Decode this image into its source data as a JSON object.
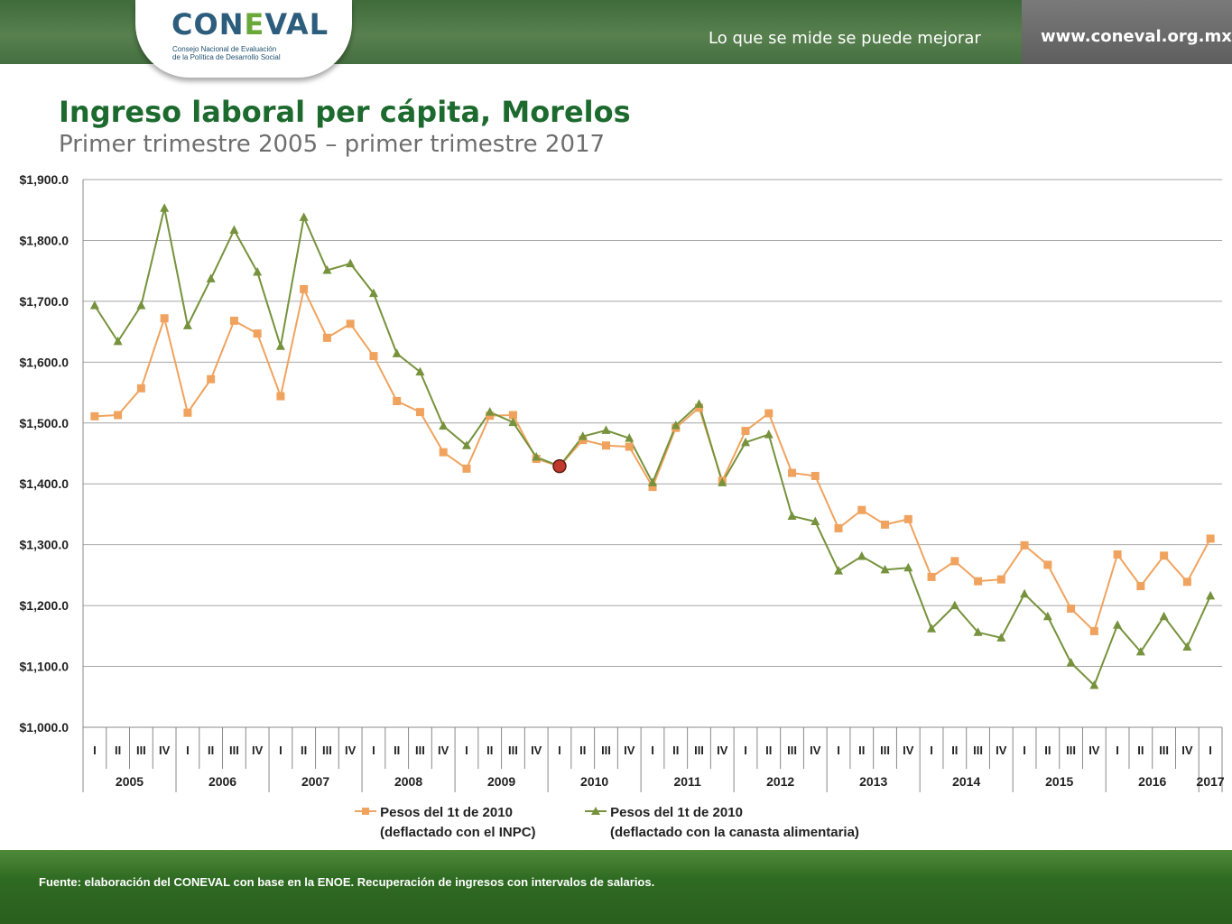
{
  "header": {
    "logo_text": "CONEVAL",
    "logo_subtitle_line1": "Consejo Nacional de Evaluación",
    "logo_subtitle_line2": "de la Política de Desarrollo Social",
    "slogan": "Lo que se mide se puede mejorar",
    "url": "www.coneval.org.mx"
  },
  "footer": {
    "source": "Fuente: elaboración del CONEVAL con base en la ENOE. Recuperación de ingresos con intervalos de salarios."
  },
  "colors": {
    "inpc": "#f0a35e",
    "canasta": "#76923c",
    "highlight": "#c0392b"
  },
  "chart_data": {
    "type": "line",
    "title": "Ingreso laboral per cápita, Morelos",
    "subtitle": "Primer trimestre 2005 – primer trimestre 2017",
    "ylim": [
      1000,
      1900
    ],
    "yticks": [
      1000,
      1100,
      1200,
      1300,
      1400,
      1500,
      1600,
      1700,
      1800,
      1900
    ],
    "ytick_labels": [
      "$1,000.0",
      "$1,100.0",
      "$1,200.0",
      "$1,300.0",
      "$1,400.0",
      "$1,500.0",
      "$1,600.0",
      "$1,700.0",
      "$1,800.0",
      "$1,900.0"
    ],
    "grid": true,
    "legend": "bottom",
    "quarter_labels": [
      "I",
      "II",
      "III",
      "IV",
      "I",
      "II",
      "III",
      "IV",
      "I",
      "II",
      "III",
      "IV",
      "I",
      "II",
      "III",
      "IV",
      "I",
      "II",
      "III",
      "IV",
      "I",
      "II",
      "III",
      "IV",
      "I",
      "II",
      "III",
      "IV",
      "I",
      "II",
      "III",
      "IV",
      "I",
      "II",
      "III",
      "IV",
      "I",
      "II",
      "III",
      "IV",
      "I",
      "II",
      "III",
      "IV",
      "I",
      "II",
      "III",
      "IV",
      "I"
    ],
    "years": [
      "2005",
      "2006",
      "2007",
      "2008",
      "2009",
      "2010",
      "2011",
      "2012",
      "2013",
      "2014",
      "2015",
      "2016",
      "2017"
    ],
    "highlight_index": 20,
    "series": [
      {
        "name_line1": "Pesos del 1t de 2010",
        "name_line2": "(deflactado con el INPC)",
        "marker": "square",
        "values": [
          1511,
          1513,
          1557,
          1672,
          1517,
          1572,
          1668,
          1647,
          1544,
          1720,
          1640,
          1663,
          1610,
          1536,
          1518,
          1452,
          1425,
          1512,
          1513,
          1441,
          1429,
          1472,
          1463,
          1461,
          1395,
          1492,
          1525,
          1405,
          1487,
          1516,
          1418,
          1413,
          1327,
          1357,
          1333,
          1342,
          1247,
          1273,
          1240,
          1243,
          1299,
          1267,
          1195,
          1158,
          1284,
          1232,
          1282,
          1239,
          1310
        ]
      },
      {
        "name_line1": "Pesos del 1t de 2010",
        "name_line2": "(deflactado con la canasta alimentaria)",
        "marker": "triangle",
        "values": [
          1693,
          1634,
          1693,
          1853,
          1660,
          1737,
          1817,
          1748,
          1626,
          1838,
          1751,
          1762,
          1713,
          1614,
          1584,
          1495,
          1463,
          1518,
          1501,
          1444,
          1429,
          1478,
          1488,
          1475,
          1402,
          1496,
          1531,
          1402,
          1468,
          1481,
          1347,
          1338,
          1257,
          1281,
          1259,
          1262,
          1162,
          1200,
          1156,
          1147,
          1219,
          1182,
          1106,
          1069,
          1168,
          1124,
          1182,
          1132,
          1216
        ]
      }
    ]
  }
}
